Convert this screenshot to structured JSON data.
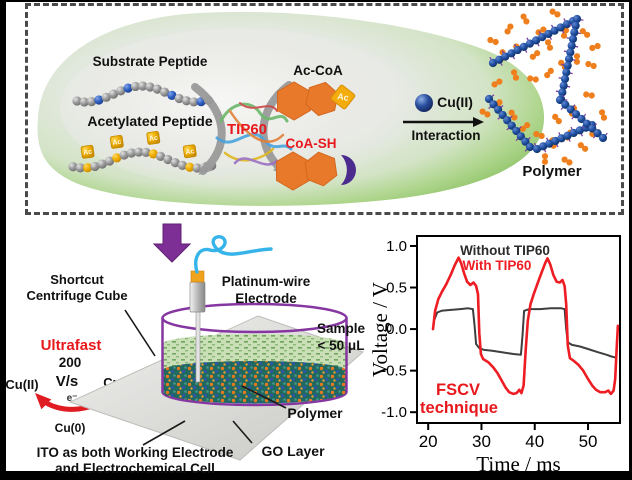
{
  "colors": {
    "accent_red": "#e8191d",
    "hexagon_orange": "#e8792b",
    "dumbbell_orange": "#ef7f1d",
    "chain_navy": "#1c4f9e",
    "wire_blue": "#36b4e9",
    "vessel_purple": "#8636a0",
    "block_arrow_purple": "#7e2f96",
    "go_layer_teal": "#21685e",
    "curve_black": "#3f3f3f",
    "curve_red": "#ee1c23"
  },
  "mechanism": {
    "substrate_peptide_label": "Substrate Peptide",
    "acetylated_peptide_label": "Acetylated Peptide",
    "enzyme_label": "TIP60",
    "accoa_label": "Ac-CoA",
    "ac_tag": "Ac",
    "coash_label": "CoA-SH",
    "copper_label": "Cu(II)",
    "interaction_label": "Interaction",
    "polymer_label": "Polymer"
  },
  "apparatus": {
    "shortcut_label_line1": "Shortcut",
    "shortcut_label_line2": "Centrifuge Cube",
    "ultrafast_label": "Ultrafast",
    "scan_rate_value": "200",
    "scan_rate_unit": "V/s",
    "cu2_label": "Cu(II)",
    "cu1_label": "Cu(I)",
    "electron_label": "e⁻",
    "cu0_label": "Cu(0)",
    "electrode_label_line1": "Platinum-wire",
    "electrode_label_line2": "Electrode",
    "sample_label_line1": "Sample",
    "sample_label_line2": "< 50 μL",
    "polymer_label": "Polymer",
    "go_layer_label": "GO Layer",
    "ito_label_line1": "ITO as both Working Electrode",
    "ito_label_line2": "and Electrochemical Cell"
  },
  "art": {
    "substrate_beads": 19,
    "substrate_blue_indices": [
      3,
      7,
      13,
      17
    ],
    "acetylated_beads": 20,
    "acetylated_yellow_indices": [
      2,
      6,
      11,
      16
    ]
  },
  "chart_data": {
    "type": "line",
    "title": "",
    "xlabel": "Time / ms",
    "ylabel": "Voltage / V",
    "xlim": [
      17.9,
      56.0
    ],
    "ylim": [
      -1.13,
      1.12
    ],
    "xticks": [
      20,
      30,
      40,
      50
    ],
    "yticks": [
      1.0,
      0.5,
      0.0,
      -0.5,
      -1.0
    ],
    "grid": false,
    "legend_position": "top-inside",
    "annotation": {
      "lines": [
        "FSCV",
        "technique"
      ],
      "color": "#e8191d"
    },
    "series": [
      {
        "name": "Without TIP60",
        "color": "#3f3f3f",
        "width": 2,
        "points": [
          [
            21.2,
            0.12
          ],
          [
            21.7,
            0.2
          ],
          [
            22.5,
            0.22
          ],
          [
            24.0,
            0.23
          ],
          [
            26.0,
            0.24
          ],
          [
            27.5,
            0.25
          ],
          [
            28.4,
            0.24
          ],
          [
            28.7,
            0.05
          ],
          [
            29.0,
            -0.18
          ],
          [
            29.6,
            -0.23
          ],
          [
            30.5,
            -0.25
          ],
          [
            32.0,
            -0.26
          ],
          [
            34.0,
            -0.28
          ],
          [
            36.0,
            -0.3
          ],
          [
            37.4,
            -0.31
          ],
          [
            37.7,
            -0.08
          ],
          [
            38.0,
            0.22
          ],
          [
            39.0,
            0.24
          ],
          [
            41.0,
            0.24
          ],
          [
            43.0,
            0.25
          ],
          [
            45.0,
            0.25
          ],
          [
            45.6,
            0.24
          ],
          [
            45.9,
            0.0
          ],
          [
            46.2,
            -0.16
          ],
          [
            47.0,
            -0.19
          ],
          [
            48.5,
            -0.21
          ],
          [
            50.0,
            -0.24
          ],
          [
            52.0,
            -0.28
          ],
          [
            53.5,
            -0.31
          ],
          [
            54.4,
            -0.33
          ],
          [
            55.0,
            -0.34
          ]
        ]
      },
      {
        "name": "With TIP60",
        "color": "#ee1c23",
        "width": 2.6,
        "points": [
          [
            20.9,
            0.0
          ],
          [
            21.3,
            0.22
          ],
          [
            21.9,
            0.36
          ],
          [
            22.6,
            0.45
          ],
          [
            23.4,
            0.54
          ],
          [
            24.2,
            0.65
          ],
          [
            25.0,
            0.77
          ],
          [
            25.7,
            0.86
          ],
          [
            26.2,
            0.79
          ],
          [
            26.8,
            0.66
          ],
          [
            27.3,
            0.57
          ],
          [
            27.9,
            0.53
          ],
          [
            28.5,
            0.56
          ],
          [
            29.0,
            0.52
          ],
          [
            29.35,
            0.42
          ],
          [
            29.6,
            -0.05
          ],
          [
            29.9,
            -0.3
          ],
          [
            30.3,
            -0.36
          ],
          [
            31.3,
            -0.4
          ],
          [
            32.2,
            -0.46
          ],
          [
            33.0,
            -0.53
          ],
          [
            33.8,
            -0.62
          ],
          [
            34.5,
            -0.7
          ],
          [
            35.2,
            -0.76
          ],
          [
            36.0,
            -0.78
          ],
          [
            36.6,
            -0.77
          ],
          [
            37.1,
            -0.73
          ],
          [
            37.5,
            -0.77
          ],
          [
            37.9,
            -0.68
          ],
          [
            38.3,
            -0.25
          ],
          [
            38.7,
            0.1
          ],
          [
            39.2,
            0.3
          ],
          [
            39.8,
            0.42
          ],
          [
            40.6,
            0.56
          ],
          [
            41.4,
            0.7
          ],
          [
            42.0,
            0.8
          ],
          [
            42.4,
            0.85
          ],
          [
            42.9,
            0.78
          ],
          [
            43.5,
            0.65
          ],
          [
            44.1,
            0.57
          ],
          [
            44.7,
            0.56
          ],
          [
            45.2,
            0.59
          ],
          [
            45.6,
            0.52
          ],
          [
            45.9,
            0.3
          ],
          [
            46.2,
            -0.2
          ],
          [
            46.6,
            -0.35
          ],
          [
            47.3,
            -0.38
          ],
          [
            48.2,
            -0.43
          ],
          [
            49.1,
            -0.5
          ],
          [
            50.0,
            -0.6
          ],
          [
            50.8,
            -0.68
          ],
          [
            51.5,
            -0.73
          ],
          [
            52.3,
            -0.76
          ],
          [
            53.2,
            -0.76
          ],
          [
            53.8,
            -0.74
          ],
          [
            54.3,
            -0.78
          ],
          [
            54.8,
            -0.74
          ],
          [
            55.1,
            -0.6
          ],
          [
            55.4,
            -0.2
          ],
          [
            55.6,
            0.04
          ]
        ]
      }
    ]
  }
}
